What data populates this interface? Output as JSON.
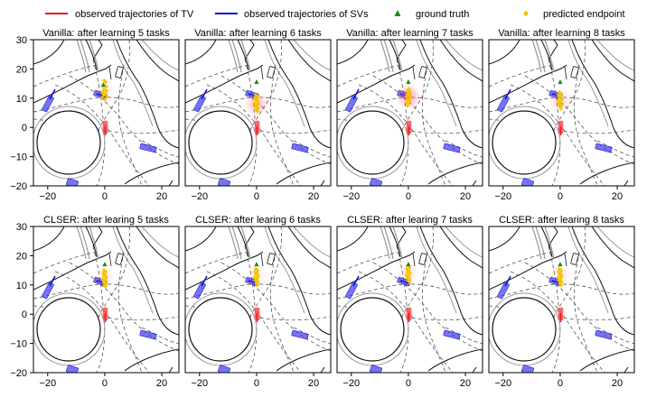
{
  "legend": {
    "entries": [
      {
        "label": "observed trajectories of TV",
        "marker": "line",
        "color": "#e41a1c"
      },
      {
        "label": "observed trajectories of SVs",
        "marker": "line",
        "color": "#0a0ad0"
      },
      {
        "label": "ground truth",
        "marker": "triangle",
        "color": "#1a8a1a"
      },
      {
        "label": "predicted endpoint",
        "marker": "diamond",
        "color": "#f5c400"
      }
    ]
  },
  "chart_data": [
    {
      "type": "scatter",
      "title": "Vanilla: after learning 5 tasks",
      "xlim": [
        -25,
        26
      ],
      "ylim": [
        -20,
        30
      ],
      "xticks": [
        -20,
        0,
        20
      ],
      "yticks": [
        -20,
        -10,
        0,
        10,
        20,
        30
      ],
      "ground_truth": [
        [
          -0.5,
          14.5
        ]
      ],
      "predicted": [
        [
          -0.2,
          16
        ],
        [
          0.3,
          15.5
        ],
        [
          -0.5,
          14.5
        ],
        [
          0.5,
          14
        ],
        [
          -0.3,
          13
        ],
        [
          0.6,
          12.5
        ],
        [
          -0.8,
          12
        ],
        [
          0.2,
          11.5
        ],
        [
          -0.4,
          11
        ],
        [
          0.8,
          10.5
        ],
        [
          -1,
          10
        ],
        [
          0.1,
          9.5
        ]
      ],
      "heat": [
        [
          -0.5,
          13,
          0.15
        ]
      ]
    },
    {
      "type": "scatter",
      "title": "Vanilla: after learning 6 tasks",
      "xlim": [
        -25,
        26
      ],
      "ylim": [
        -20,
        30
      ],
      "xticks": [
        -20,
        0,
        20
      ],
      "yticks": [
        -20,
        -10,
        0,
        10,
        20,
        30
      ],
      "ground_truth": [
        [
          0,
          15.5
        ]
      ],
      "predicted": [
        [
          -0.3,
          11
        ],
        [
          0.4,
          10.5
        ],
        [
          -0.6,
          10
        ],
        [
          0.2,
          9.5
        ],
        [
          -0.2,
          9
        ],
        [
          0.6,
          8.5
        ],
        [
          -0.8,
          8
        ],
        [
          0.1,
          7.5
        ],
        [
          -0.4,
          7
        ],
        [
          0.5,
          6.5
        ],
        [
          -0.1,
          6
        ],
        [
          0.3,
          5.5
        ]
      ],
      "heat": [
        [
          0,
          8,
          0.45
        ]
      ]
    },
    {
      "type": "scatter",
      "title": "Vanilla: after learning 7 tasks",
      "xlim": [
        -25,
        26
      ],
      "ylim": [
        -20,
        30
      ],
      "xticks": [
        -20,
        0,
        20
      ],
      "yticks": [
        -20,
        -10,
        0,
        10,
        20,
        30
      ],
      "ground_truth": [
        [
          0,
          15.5
        ]
      ],
      "predicted": [
        [
          0.3,
          13
        ],
        [
          -0.4,
          12.5
        ],
        [
          0.6,
          12
        ],
        [
          -0.2,
          11.5
        ],
        [
          0.2,
          11
        ],
        [
          -0.7,
          10.5
        ],
        [
          0.5,
          10
        ],
        [
          -0.1,
          9.5
        ],
        [
          0.4,
          9
        ],
        [
          -0.5,
          8.5
        ],
        [
          0.1,
          8
        ],
        [
          -0.3,
          7.5
        ]
      ],
      "heat": [
        [
          0,
          10.5,
          0.6
        ]
      ]
    },
    {
      "type": "scatter",
      "title": "Vanilla: after learning 8 tasks",
      "xlim": [
        -25,
        26
      ],
      "ylim": [
        -20,
        30
      ],
      "xticks": [
        -20,
        0,
        20
      ],
      "yticks": [
        -20,
        -10,
        0,
        10,
        20,
        30
      ],
      "ground_truth": [
        [
          0,
          15.5
        ]
      ],
      "predicted": [
        [
          -0.2,
          12
        ],
        [
          0.4,
          11.5
        ],
        [
          -0.6,
          11
        ],
        [
          0.2,
          10.5
        ],
        [
          -0.3,
          10
        ],
        [
          0.7,
          9.5
        ],
        [
          -0.8,
          9
        ],
        [
          0.1,
          8.5
        ],
        [
          -0.4,
          8
        ],
        [
          0.5,
          7.5
        ],
        [
          -0.1,
          7
        ],
        [
          0.3,
          6.5
        ]
      ],
      "heat": [
        [
          0,
          9,
          0.25
        ]
      ]
    },
    {
      "type": "scatter",
      "title": "CLSER: after learing 5 tasks",
      "xlim": [
        -25,
        26
      ],
      "ylim": [
        -20,
        30
      ],
      "xticks": [
        -20,
        0,
        20
      ],
      "yticks": [
        -20,
        -10,
        0,
        10,
        20,
        30
      ],
      "ground_truth": [
        [
          0,
          17
        ]
      ],
      "predicted": [
        [
          -0.3,
          15
        ],
        [
          0.4,
          14.5
        ],
        [
          -0.6,
          14
        ],
        [
          0.2,
          13.5
        ],
        [
          -0.2,
          13
        ],
        [
          0.6,
          12.5
        ],
        [
          -0.8,
          12
        ],
        [
          0.1,
          11.5
        ],
        [
          -0.4,
          11
        ],
        [
          0.5,
          10.5
        ],
        [
          -0.1,
          10
        ],
        [
          0.3,
          9.5
        ]
      ],
      "heat": [
        [
          0,
          12.5,
          0.15
        ]
      ]
    },
    {
      "type": "scatter",
      "title": "CLSER: after learing 6 tasks",
      "xlim": [
        -25,
        26
      ],
      "ylim": [
        -20,
        30
      ],
      "xticks": [
        -20,
        0,
        20
      ],
      "yticks": [
        -20,
        -10,
        0,
        10,
        20,
        30
      ],
      "ground_truth": [
        [
          0,
          17
        ]
      ],
      "predicted": [
        [
          -0.3,
          15.5
        ],
        [
          0.4,
          15
        ],
        [
          -0.6,
          14.5
        ],
        [
          0.2,
          14
        ],
        [
          -0.2,
          13.5
        ],
        [
          0.6,
          13
        ],
        [
          -0.8,
          12.5
        ],
        [
          0.1,
          12
        ],
        [
          -0.4,
          11.5
        ],
        [
          0.5,
          11
        ],
        [
          -0.1,
          10.5
        ],
        [
          0.3,
          10
        ]
      ],
      "heat": [
        [
          0,
          13,
          0.15
        ]
      ]
    },
    {
      "type": "scatter",
      "title": "CLSER: after learing 7 tasks",
      "xlim": [
        -25,
        26
      ],
      "ylim": [
        -20,
        30
      ],
      "xticks": [
        -20,
        0,
        20
      ],
      "yticks": [
        -20,
        -10,
        0,
        10,
        20,
        30
      ],
      "ground_truth": [
        [
          0,
          17
        ]
      ],
      "predicted": [
        [
          -0.3,
          16.5
        ],
        [
          0.4,
          16
        ],
        [
          -0.6,
          15.5
        ],
        [
          0.2,
          15
        ],
        [
          -0.2,
          14.5
        ],
        [
          0.6,
          14
        ],
        [
          -0.8,
          13.5
        ],
        [
          0.1,
          13
        ],
        [
          -0.4,
          12.5
        ],
        [
          0.5,
          12
        ],
        [
          -0.1,
          11.5
        ],
        [
          0.3,
          11
        ]
      ],
      "heat": [
        [
          0,
          14,
          0.15
        ]
      ]
    },
    {
      "type": "scatter",
      "title": "CLSER: after learing 8 tasks",
      "xlim": [
        -25,
        26
      ],
      "ylim": [
        -20,
        30
      ],
      "xticks": [
        -20,
        0,
        20
      ],
      "yticks": [
        -20,
        -10,
        0,
        10,
        20,
        30
      ],
      "ground_truth": [
        [
          0,
          17
        ]
      ],
      "predicted": [
        [
          -0.3,
          15.5
        ],
        [
          0.4,
          15
        ],
        [
          -0.6,
          14.5
        ],
        [
          0.2,
          14
        ],
        [
          -0.2,
          13.5
        ],
        [
          0.6,
          13
        ],
        [
          -0.8,
          12.5
        ],
        [
          0.1,
          12
        ],
        [
          -0.4,
          11.5
        ],
        [
          0.5,
          11
        ],
        [
          -0.1,
          10.5
        ],
        [
          0.3,
          10
        ]
      ],
      "heat": [
        [
          0,
          13,
          0.15
        ]
      ]
    }
  ]
}
